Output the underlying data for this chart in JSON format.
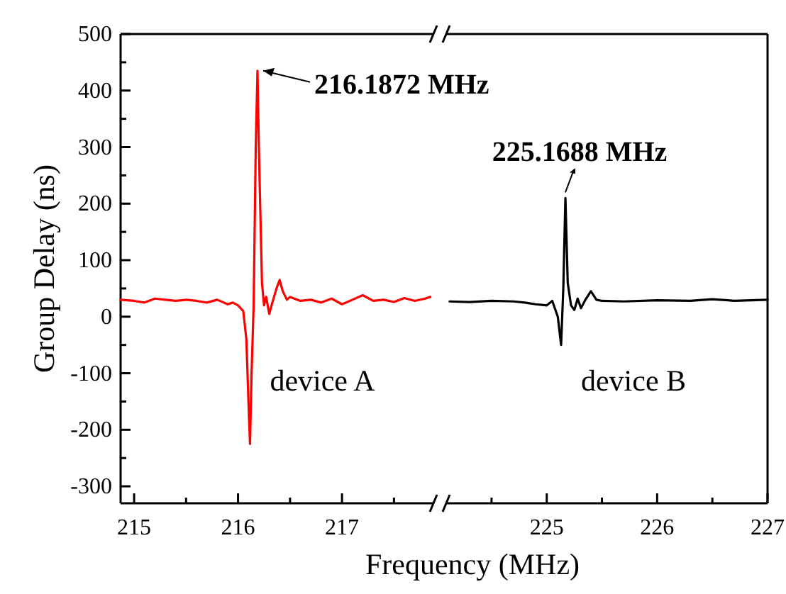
{
  "chart_data": [
    {
      "type": "line",
      "ylabel": "Group Delay (ns)",
      "xlabel": "Frequency (MHz)",
      "xlim": [
        214.87,
        217.9
      ],
      "xticks": [
        215,
        {
          "value": 215.5,
          "label": null
        },
        216,
        {
          "value": 216.5,
          "label": null
        },
        217,
        {
          "value": 217.5,
          "label": null
        }
      ],
      "ylim": [
        -330,
        500
      ],
      "yticks": [
        {
          "value": -250,
          "label": null
        },
        -300,
        -200,
        {
          "value": -150,
          "label": null
        },
        -100,
        {
          "value": -50,
          "label": null
        },
        0,
        {
          "value": 50,
          "label": null
        },
        100,
        {
          "value": 150,
          "label": null
        },
        200,
        {
          "value": 250,
          "label": null
        },
        300,
        {
          "value": 350,
          "label": null
        },
        400,
        {
          "value": 450,
          "label": null
        },
        500
      ],
      "annotations": [
        {
          "text": "216.1872 MHz",
          "x": 216.1872,
          "y": 435
        }
      ],
      "series": [
        {
          "name": "device A",
          "color": "#ff0000",
          "x": [
            214.87,
            215.0,
            215.1,
            215.2,
            215.3,
            215.4,
            215.5,
            215.6,
            215.7,
            215.8,
            215.9,
            215.95,
            216.0,
            216.05,
            216.08,
            216.1,
            216.115,
            216.13,
            216.15,
            216.17,
            216.187,
            216.2,
            216.23,
            216.25,
            216.27,
            216.3,
            216.33,
            216.37,
            216.4,
            216.43,
            216.47,
            216.5,
            216.6,
            216.7,
            216.8,
            216.9,
            217.0,
            217.1,
            217.2,
            217.3,
            217.4,
            217.5,
            217.6,
            217.7,
            217.8,
            217.85
          ],
          "values": [
            30,
            28,
            25,
            32,
            30,
            28,
            30,
            28,
            25,
            30,
            22,
            25,
            20,
            10,
            -40,
            -150,
            -225,
            -100,
            20,
            300,
            435,
            300,
            60,
            20,
            35,
            5,
            25,
            50,
            65,
            45,
            30,
            35,
            28,
            30,
            25,
            32,
            22,
            30,
            38,
            28,
            30,
            26,
            33,
            28,
            32,
            35
          ]
        }
      ]
    },
    {
      "type": "line",
      "xlim": [
        224.07,
        227
      ],
      "xticks": [
        {
          "value": 224.5,
          "label": null
        },
        225,
        {
          "value": 225.5,
          "label": null
        },
        226,
        {
          "value": 226.5,
          "label": null
        },
        227
      ],
      "ylim": [
        -330,
        500
      ],
      "tick_labels": "x",
      "annotations": [
        {
          "text": "225.1688 MHz",
          "x": 225.1688,
          "y": 210
        }
      ],
      "series": [
        {
          "name": "device B",
          "color": "#000000",
          "x": [
            224.12,
            224.3,
            224.5,
            224.7,
            224.8,
            224.9,
            225.0,
            225.05,
            225.1,
            225.13,
            225.15,
            225.169,
            225.19,
            225.22,
            225.25,
            225.28,
            225.31,
            225.35,
            225.4,
            225.45,
            225.5,
            225.7,
            226.0,
            226.3,
            226.5,
            226.7,
            227.0
          ],
          "values": [
            27,
            26,
            28,
            27,
            25,
            22,
            20,
            28,
            0,
            -50,
            50,
            210,
            60,
            20,
            12,
            32,
            15,
            30,
            45,
            30,
            28,
            27,
            29,
            28,
            31,
            28,
            30
          ]
        }
      ]
    }
  ]
}
